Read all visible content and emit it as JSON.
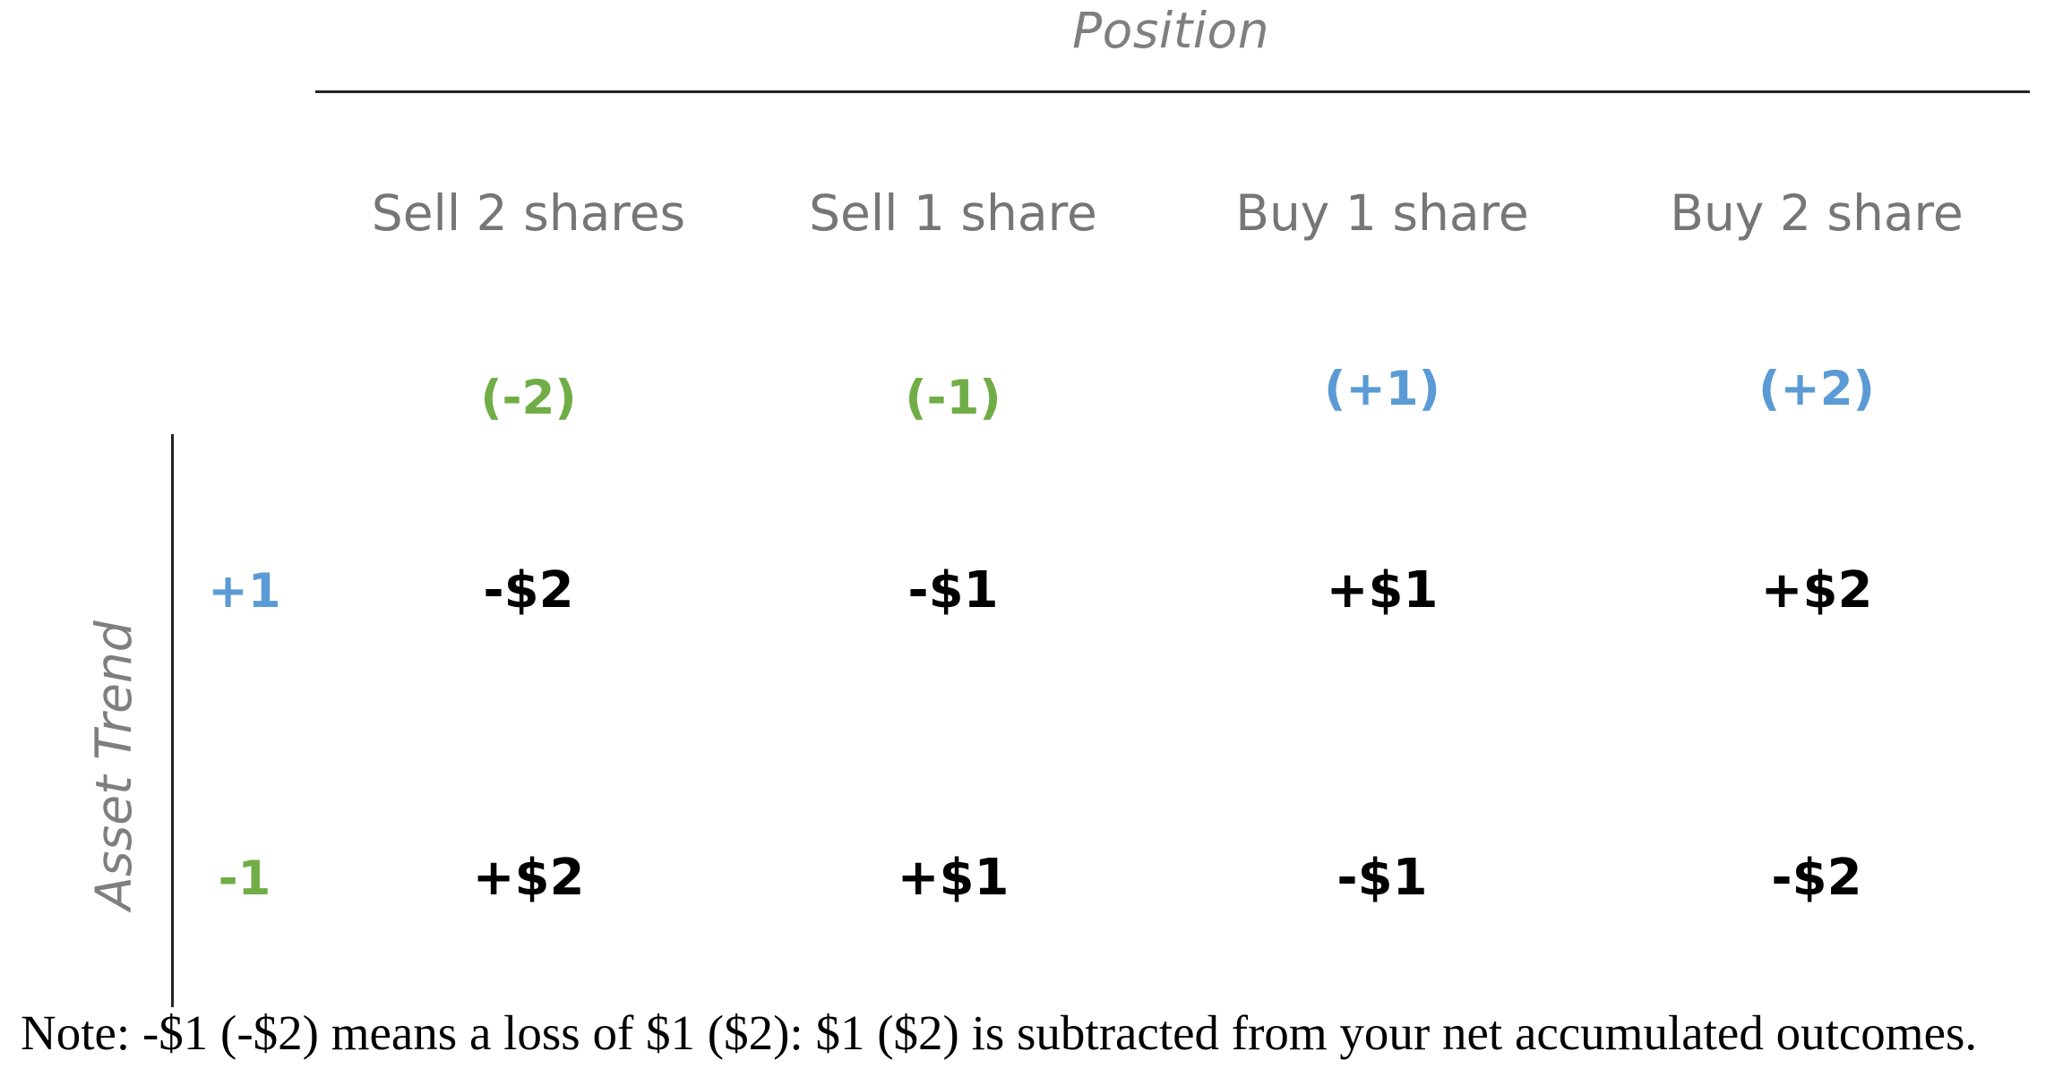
{
  "colors": {
    "negative": "#70ad47",
    "positive": "#5b9bd5",
    "label_gray": "#7f7f7f",
    "value": "#000000"
  },
  "position_title": "Position",
  "axis_title": "Asset Trend",
  "columns": [
    {
      "label": "Sell 2 shares",
      "code": "(-2)",
      "polarity": "negative"
    },
    {
      "label": "Sell 1 share",
      "code": "(-1)",
      "polarity": "negative"
    },
    {
      "label": "Buy 1 share",
      "code": "(+1)",
      "polarity": "positive"
    },
    {
      "label": "Buy 2 share",
      "code": "(+2)",
      "polarity": "positive"
    }
  ],
  "rows": [
    {
      "label": "+1",
      "polarity": "positive",
      "values": [
        "-$2",
        "-$1",
        "+$1",
        "+$2"
      ]
    },
    {
      "label": "-1",
      "polarity": "negative",
      "values": [
        "+$2",
        "+$1",
        "-$1",
        "-$2"
      ]
    }
  ],
  "note": "Note: -$1 (-$2) means a loss of $1 ($2): $1 ($2) is subtracted from your net accumulated outcomes."
}
